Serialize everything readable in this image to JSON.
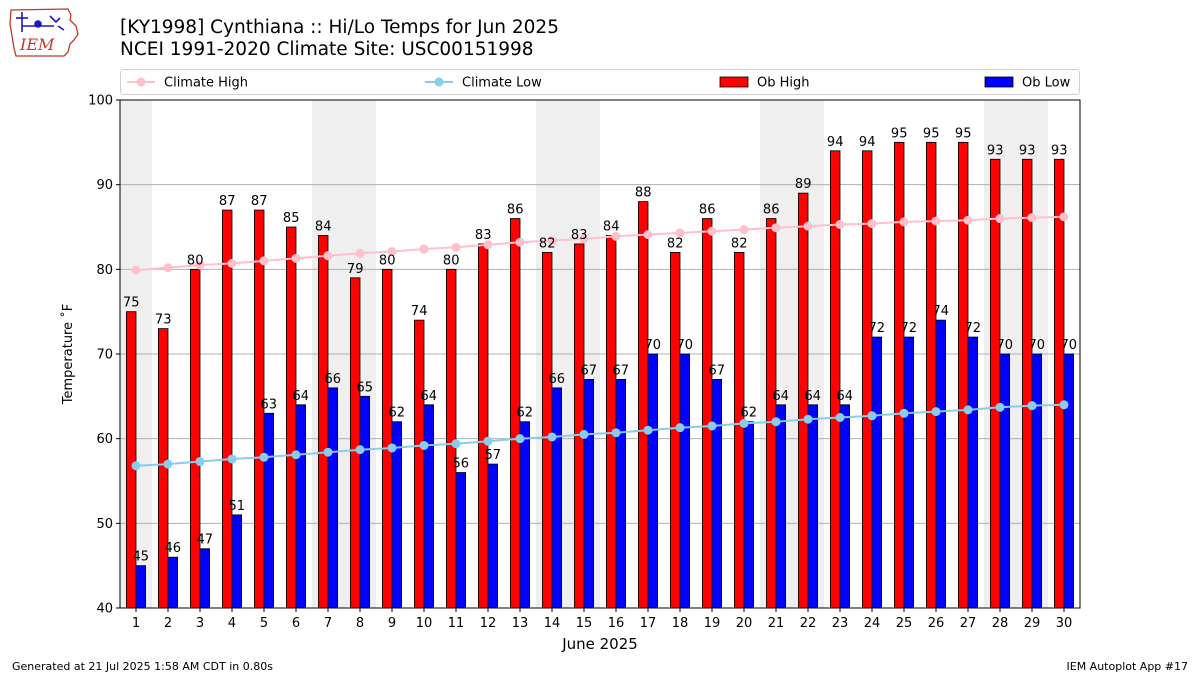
{
  "header": {
    "title_line1": "[KY1998] Cynthiana :: Hi/Lo Temps for Jun 2025",
    "title_line2": "NCEI 1991-2020 Climate Site: USC00151998",
    "logo_text": "IEM"
  },
  "footer": {
    "left": "Generated at 21 Jul 2025 1:58 AM CDT in 0.80s",
    "right": "IEM Autoplot App #17"
  },
  "chart_data": {
    "type": "bar",
    "xlabel": "June 2025",
    "ylabel": "Temperature ˚F",
    "ylim": [
      40,
      100
    ],
    "yticks": [
      40,
      50,
      60,
      70,
      80,
      90,
      100
    ],
    "grid": true,
    "legend_placement": "top",
    "categories": [
      "1",
      "2",
      "3",
      "4",
      "5",
      "6",
      "7",
      "8",
      "9",
      "10",
      "11",
      "12",
      "13",
      "14",
      "15",
      "16",
      "17",
      "18",
      "19",
      "20",
      "21",
      "22",
      "23",
      "24",
      "25",
      "26",
      "27",
      "28",
      "29",
      "30"
    ],
    "weekend_shading_days": [
      1,
      7,
      8,
      14,
      15,
      21,
      22,
      28,
      29
    ],
    "series": [
      {
        "name": "Climate High",
        "kind": "line",
        "color": "#ffc0cb",
        "values": [
          79.9,
          80.2,
          80.5,
          80.7,
          81.0,
          81.3,
          81.6,
          81.9,
          82.1,
          82.4,
          82.6,
          82.9,
          83.2,
          83.4,
          83.6,
          83.9,
          84.1,
          84.3,
          84.5,
          84.7,
          84.9,
          85.1,
          85.3,
          85.4,
          85.6,
          85.7,
          85.8,
          86.0,
          86.1,
          86.2
        ]
      },
      {
        "name": "Climate Low",
        "kind": "line",
        "color": "#87ceeb",
        "values": [
          56.8,
          57.0,
          57.3,
          57.6,
          57.8,
          58.1,
          58.4,
          58.7,
          58.9,
          59.2,
          59.4,
          59.7,
          60.0,
          60.2,
          60.5,
          60.7,
          61.0,
          61.3,
          61.5,
          61.8,
          62.0,
          62.3,
          62.5,
          62.7,
          63.0,
          63.2,
          63.4,
          63.7,
          63.9,
          64.0
        ]
      },
      {
        "name": "Ob High",
        "kind": "bar",
        "color": "#ff0000",
        "values": [
          75,
          73,
          80,
          87,
          87,
          85,
          84,
          79,
          80,
          74,
          80,
          83,
          86,
          82,
          83,
          84,
          88,
          82,
          86,
          82,
          86,
          89,
          94,
          94,
          95,
          95,
          95,
          93,
          93,
          93
        ]
      },
      {
        "name": "Ob Low",
        "kind": "bar",
        "color": "#0000ff",
        "values": [
          45,
          46,
          47,
          51,
          63,
          64,
          66,
          65,
          62,
          64,
          56,
          57,
          62,
          66,
          67,
          67,
          70,
          70,
          67,
          62,
          64,
          64,
          64,
          72,
          72,
          74,
          72,
          70,
          70,
          70
        ]
      }
    ]
  }
}
